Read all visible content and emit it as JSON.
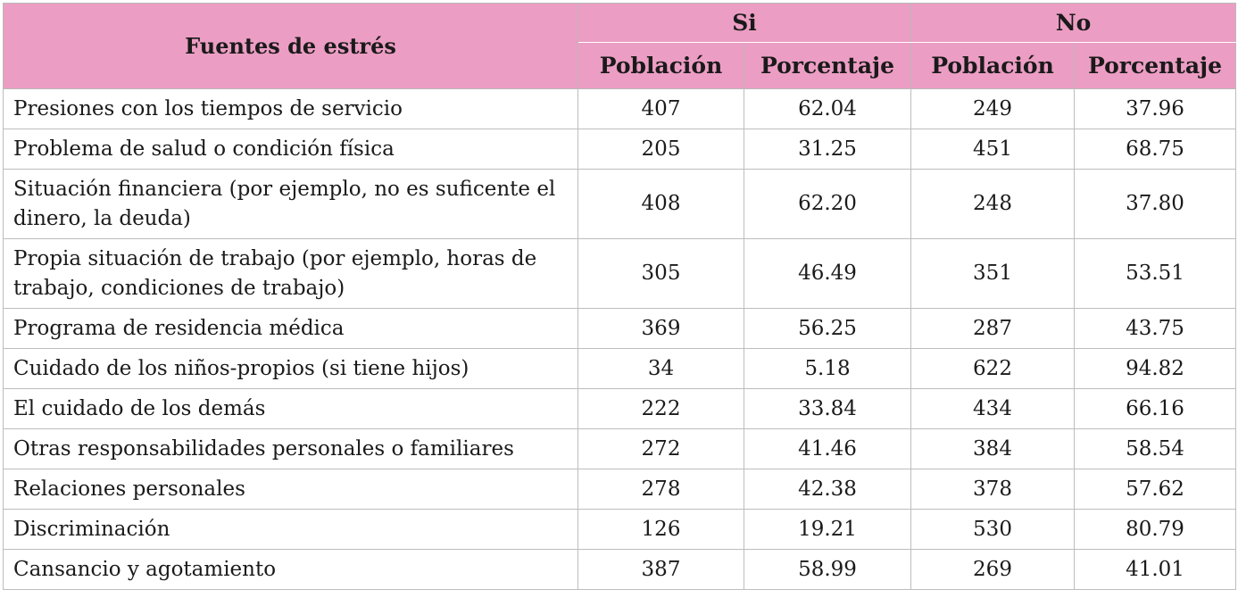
{
  "table": {
    "header": {
      "row_label": "Fuentes de estrés",
      "groups": [
        "Si",
        "No"
      ],
      "subcolumns": [
        "Población",
        "Porcentaje",
        "Población",
        "Porcentaje"
      ]
    },
    "rows": [
      {
        "label": "Presiones con los tiempos de servicio",
        "si_pob": "407",
        "si_pct": "62.04",
        "no_pob": "249",
        "no_pct": "37.96"
      },
      {
        "label": "Problema de salud o condición física",
        "si_pob": "205",
        "si_pct": "31.25",
        "no_pob": "451",
        "no_pct": "68.75"
      },
      {
        "label": "Situación financiera (por ejemplo, no es suficente el dinero, la deuda)",
        "si_pob": "408",
        "si_pct": "62.20",
        "no_pob": "248",
        "no_pct": "37.80"
      },
      {
        "label": "Propia situación de trabajo (por ejemplo, horas de trabajo, condiciones de trabajo)",
        "si_pob": "305",
        "si_pct": "46.49",
        "no_pob": "351",
        "no_pct": "53.51"
      },
      {
        "label": "Programa de residencia médica",
        "si_pob": "369",
        "si_pct": "56.25",
        "no_pob": "287",
        "no_pct": "43.75"
      },
      {
        "label": "Cuidado de los niños-propios (si tiene hijos)",
        "si_pob": "34",
        "si_pct": "5.18",
        "no_pob": "622",
        "no_pct": "94.82"
      },
      {
        "label": "El cuidado de los demás",
        "si_pob": "222",
        "si_pct": "33.84",
        "no_pob": "434",
        "no_pct": "66.16"
      },
      {
        "label": "Otras responsabilidades personales o familiares",
        "si_pob": "272",
        "si_pct": "41.46",
        "no_pob": "384",
        "no_pct": "58.54"
      },
      {
        "label": "Relaciones personales",
        "si_pob": "278",
        "si_pct": "42.38",
        "no_pob": "378",
        "no_pct": "57.62"
      },
      {
        "label": "Discriminación",
        "si_pob": "126",
        "si_pct": "19.21",
        "no_pob": "530",
        "no_pct": "80.79"
      },
      {
        "label": "Cansancio y agotamiento",
        "si_pob": "387",
        "si_pct": "58.99",
        "no_pob": "269",
        "no_pct": "41.01"
      }
    ]
  }
}
